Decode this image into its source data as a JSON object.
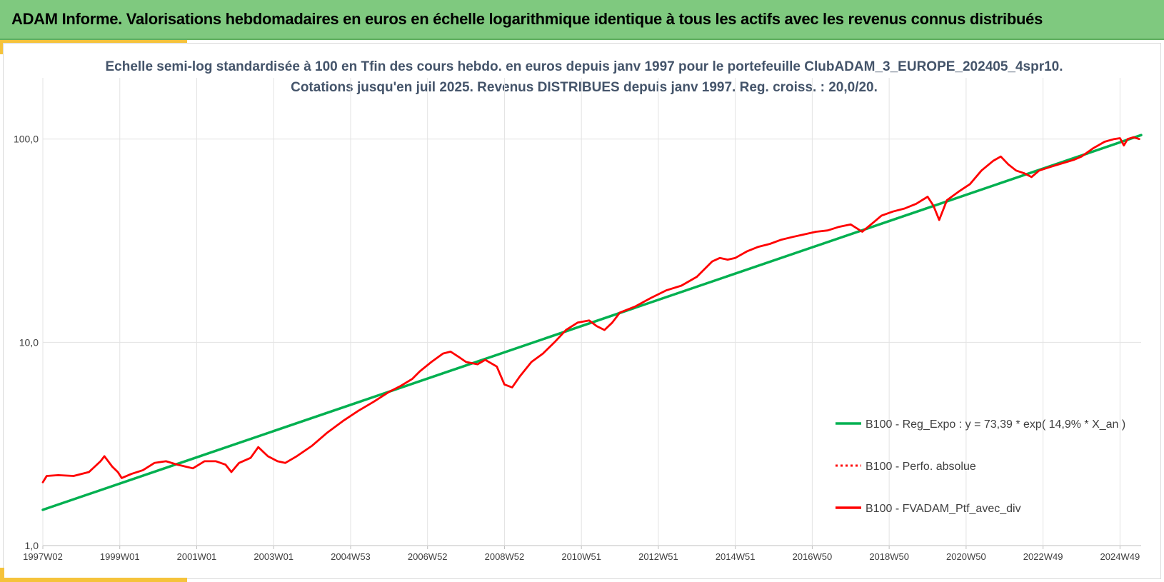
{
  "header": {
    "title": "ADAM Informe. Valorisations hebdomadaires en euros en échelle logarithmique identique à tous les actifs avec les revenus connus distribués"
  },
  "chart_data": {
    "type": "line",
    "title_line1": "Echelle semi-log standardisée à 100 en Tfin des cours hebdo. en euros depuis janv 1997 pour le portefeuille ClubADAM_3_EUROPE_202405_4spr10.",
    "title_line2": "Cotations jusqu'en juil 2025. Revenus DISTRIBUES depuis janv 1997. Reg. croiss. : 20,0/20.",
    "y_scale": "log",
    "ylim": [
      1,
      200
    ],
    "xlim": [
      1997.0,
      2025.55
    ],
    "y_ticks": [
      {
        "value": 1,
        "label": "1,0"
      },
      {
        "value": 10,
        "label": "10,0"
      },
      {
        "value": 100,
        "label": "100,0"
      }
    ],
    "x_ticks": [
      {
        "value": 1997.0,
        "label": "1997W02"
      },
      {
        "value": 1999.0,
        "label": "1999W01"
      },
      {
        "value": 2001.0,
        "label": "2001W01"
      },
      {
        "value": 2003.0,
        "label": "2003W01"
      },
      {
        "value": 2005.0,
        "label": "2004W53"
      },
      {
        "value": 2007.0,
        "label": "2006W52"
      },
      {
        "value": 2009.0,
        "label": "2008W52"
      },
      {
        "value": 2011.0,
        "label": "2010W51"
      },
      {
        "value": 2013.0,
        "label": "2012W51"
      },
      {
        "value": 2015.0,
        "label": "2014W51"
      },
      {
        "value": 2017.0,
        "label": "2016W50"
      },
      {
        "value": 2019.0,
        "label": "2018W50"
      },
      {
        "value": 2021.0,
        "label": "2020W50"
      },
      {
        "value": 2023.0,
        "label": "2022W49"
      },
      {
        "value": 2025.0,
        "label": "2024W49"
      }
    ],
    "grid": true,
    "legend_position": "bottom-right",
    "series": [
      {
        "name": "B100 - Reg_Expo : y = 73,39 * exp( 14,9% *  X_an )",
        "color": "#00b050",
        "style": "solid",
        "x": [
          1997.0,
          2025.55
        ],
        "y": [
          1.5,
          104.5
        ]
      },
      {
        "name": "B100 - Perfo. absolue",
        "color": "#ff0000",
        "style": "dotted",
        "x": [],
        "y": []
      },
      {
        "name": "B100 - FVADAM_Ptf_avec_div",
        "color": "#ff0000",
        "style": "solid",
        "x": [
          1997.0,
          1997.1,
          1997.4,
          1997.8,
          1998.2,
          1998.5,
          1998.6,
          1998.8,
          1998.95,
          1999.05,
          1999.3,
          1999.6,
          1999.9,
          2000.2,
          2000.5,
          2000.7,
          2000.9,
          2001.2,
          2001.5,
          2001.75,
          2001.9,
          2002.1,
          2002.4,
          2002.6,
          2002.85,
          2003.1,
          2003.3,
          2003.6,
          2004.0,
          2004.4,
          2004.8,
          2005.2,
          2005.6,
          2006.0,
          2006.3,
          2006.6,
          2006.8,
          2007.1,
          2007.4,
          2007.6,
          2007.8,
          2008.0,
          2008.3,
          2008.5,
          2008.8,
          2009.0,
          2009.2,
          2009.4,
          2009.7,
          2010.0,
          2010.3,
          2010.6,
          2010.9,
          2011.2,
          2011.4,
          2011.6,
          2011.8,
          2012.0,
          2012.4,
          2012.8,
          2013.2,
          2013.6,
          2014.0,
          2014.4,
          2014.6,
          2014.8,
          2015.0,
          2015.3,
          2015.6,
          2015.9,
          2016.2,
          2016.5,
          2016.8,
          2017.1,
          2017.4,
          2017.7,
          2018.0,
          2018.3,
          2018.6,
          2018.8,
          2019.1,
          2019.4,
          2019.7,
          2020.0,
          2020.15,
          2020.3,
          2020.5,
          2020.8,
          2021.1,
          2021.4,
          2021.7,
          2021.9,
          2022.1,
          2022.3,
          2022.5,
          2022.7,
          2022.9,
          2023.2,
          2023.5,
          2023.8,
          2024.0,
          2024.3,
          2024.6,
          2024.85,
          2025.0,
          2025.1,
          2025.2,
          2025.35,
          2025.5
        ],
        "y": [
          2.05,
          2.2,
          2.22,
          2.2,
          2.3,
          2.6,
          2.75,
          2.45,
          2.3,
          2.15,
          2.25,
          2.35,
          2.55,
          2.6,
          2.5,
          2.45,
          2.4,
          2.6,
          2.6,
          2.5,
          2.3,
          2.55,
          2.7,
          3.05,
          2.75,
          2.6,
          2.55,
          2.75,
          3.1,
          3.6,
          4.1,
          4.6,
          5.1,
          5.7,
          6.1,
          6.6,
          7.2,
          8.0,
          8.8,
          9.0,
          8.5,
          8.0,
          7.8,
          8.2,
          7.6,
          6.2,
          6.0,
          6.8,
          8.0,
          8.8,
          10.0,
          11.5,
          12.5,
          12.8,
          12.0,
          11.5,
          12.5,
          14.0,
          15.0,
          16.5,
          18.0,
          19.0,
          21.0,
          25.0,
          26.0,
          25.5,
          26.0,
          28.0,
          29.5,
          30.5,
          32.0,
          33.0,
          34.0,
          35.0,
          35.5,
          37.0,
          38.0,
          35.0,
          39.0,
          42.0,
          44.0,
          45.5,
          48.0,
          52.0,
          47.0,
          40.0,
          50.0,
          55.0,
          60.0,
          70.0,
          78.0,
          82.0,
          75.0,
          70.0,
          68.0,
          65.0,
          70.0,
          73.0,
          76.0,
          79.0,
          82.0,
          90.0,
          97.0,
          100.0,
          101.0,
          93.0,
          100.0,
          102.0,
          100.0
        ]
      }
    ]
  }
}
